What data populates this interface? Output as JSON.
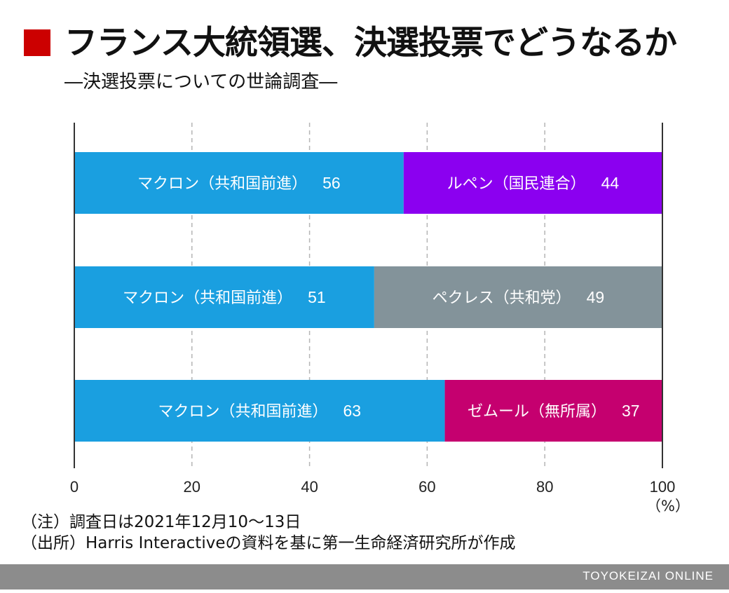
{
  "colors": {
    "accent": "#cc0000",
    "macron": "#1a9fe0",
    "le_pen": "#8b00f0",
    "pecresse": "#83939a",
    "zemmour": "#c5006f",
    "footer": "#8c8c8c",
    "axis": "#333333",
    "grid": "#b5b5b5"
  },
  "header": {
    "title": "フランス大統領選、決選投票でどうなるか",
    "subtitle": "―決選投票についての世論調査―"
  },
  "notes": [
    "（注）調査日は2021年12月10〜13日",
    "（出所）Harris Interactiveの資料を基に第一生命経済研究所が作成"
  ],
  "footer": {
    "credit": "TOYOKEIZAI ONLINE"
  },
  "chart_data": {
    "type": "bar",
    "orientation": "horizontal",
    "stacked": true,
    "grid": true,
    "xlim": [
      0,
      100
    ],
    "xticks": [
      "0",
      "20",
      "40",
      "60",
      "80",
      "100"
    ],
    "x_unit": "（%）",
    "title": "フランス大統領選、決選投票でどうなるか",
    "subtitle": "―決選投票についての世論調査―",
    "rows": [
      {
        "segments": [
          {
            "label": "マクロン（共和国前進）",
            "value": 56,
            "color": "#1a9fe0"
          },
          {
            "label": "ルペン（国民連合）",
            "value": 44,
            "color": "#8b00f0"
          }
        ]
      },
      {
        "segments": [
          {
            "label": "マクロン（共和国前進）",
            "value": 51,
            "color": "#1a9fe0"
          },
          {
            "label": "ペクレス（共和党）",
            "value": 49,
            "color": "#83939a"
          }
        ]
      },
      {
        "segments": [
          {
            "label": "マクロン（共和国前進）",
            "value": 63,
            "color": "#1a9fe0"
          },
          {
            "label": "ゼムール（無所属）",
            "value": 37,
            "color": "#c5006f"
          }
        ]
      }
    ]
  }
}
